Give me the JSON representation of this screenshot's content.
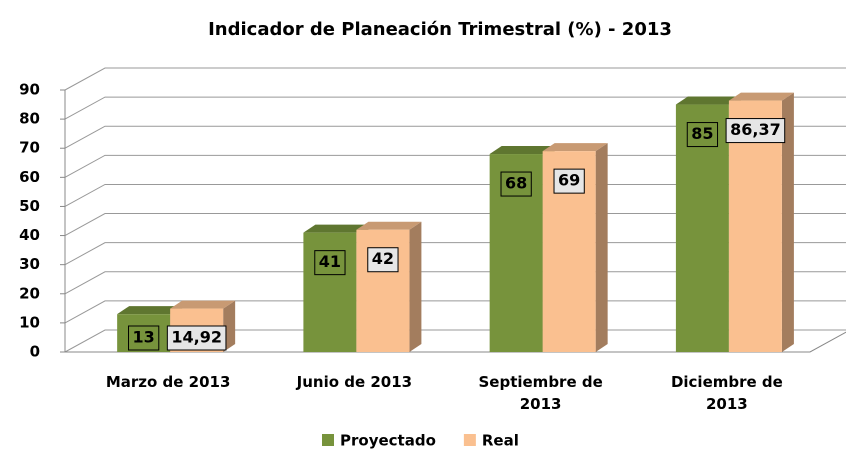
{
  "chart_data": {
    "type": "bar3d",
    "title": "Indicador de Planeación Trimestral (%) -  2013",
    "categories": [
      "Marzo de 2013",
      "Junio de 2013",
      "Septiembre de 2013",
      "Diciembre de 2013"
    ],
    "series": [
      {
        "name": "Proyectado",
        "color": "#77933c",
        "values": [
          13,
          41,
          68,
          85
        ]
      },
      {
        "name": "Real",
        "color": "#fac090",
        "values": [
          14.92,
          42,
          69,
          86.37
        ],
        "value_labels": [
          "14,92",
          "42",
          "69",
          "86,37"
        ]
      }
    ],
    "ylim": [
      0,
      90
    ],
    "yticks": [
      0,
      10,
      20,
      30,
      40,
      50,
      60,
      70,
      80,
      90
    ],
    "grid": true,
    "legend": "bottom"
  }
}
